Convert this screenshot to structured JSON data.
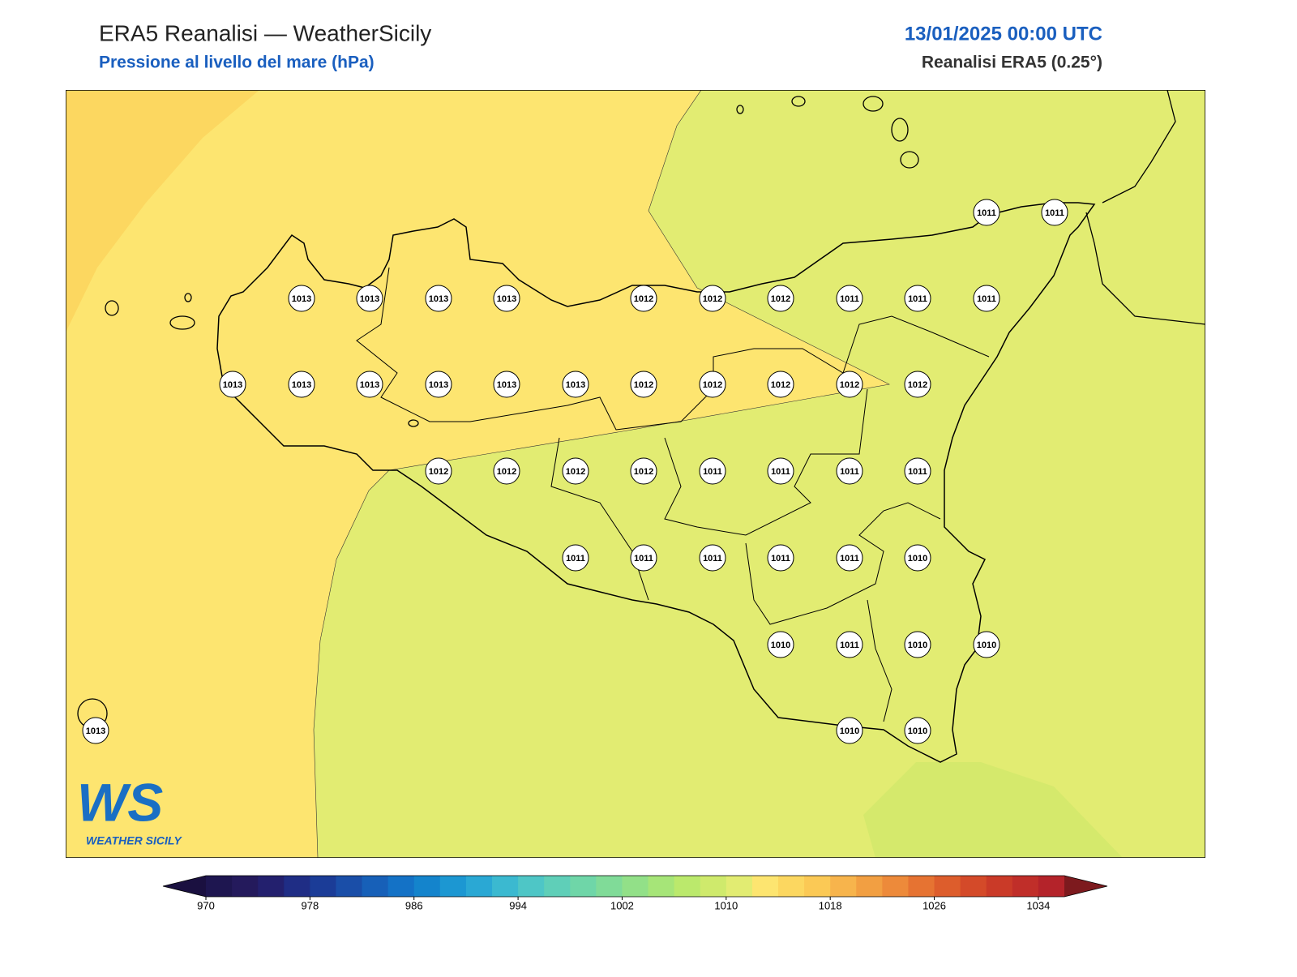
{
  "header": {
    "title": "ERA5 Reanalisi — WeatherSicily",
    "subtitle": "Pressione al livello del mare (hPa)",
    "datetime": "13/01/2025 00:00 UTC",
    "source": "Reanalisi ERA5 (0.25°)"
  },
  "map": {
    "stations": [
      1011,
      1011,
      1013,
      1013,
      1013,
      1013,
      1012,
      1012,
      1012,
      1011,
      1011,
      1011,
      1013,
      1013,
      1013,
      1013,
      1013,
      1013,
      1012,
      1012,
      1012,
      1012,
      1012,
      1012,
      1012,
      1012,
      1012,
      1011,
      1011,
      1011,
      1011,
      1011,
      1011,
      1011,
      1011,
      1011,
      1010,
      1010,
      1011,
      1010,
      1010,
      1013,
      1010,
      1010
    ]
  },
  "colorbar": {
    "lim": [
      970,
      1036
    ],
    "step": 2,
    "ticks": [
      970,
      978,
      986,
      994,
      1002,
      1010,
      1018,
      1026,
      1034
    ],
    "colors": [
      "#1e1650",
      "#241a5c",
      "#23206e",
      "#1f2d85",
      "#1b3c97",
      "#1a4ea8",
      "#1760b8",
      "#1472c6",
      "#1484cc",
      "#1c97d2",
      "#2aa8d4",
      "#3bb9d0",
      "#4ec6c6",
      "#5fcfb8",
      "#6fd6a8",
      "#80db98",
      "#92e088",
      "#a6e578",
      "#bbe96c",
      "#cfea6c",
      "#e2ec72",
      "#fde570",
      "#fcd760",
      "#fbc955",
      "#f7b44c",
      "#f29f42",
      "#ed8a3a",
      "#e67332",
      "#dd5d2c",
      "#d44a29",
      "#ca3a28",
      "#c02e29",
      "#b4232a"
    ],
    "under_color": "#1a1040",
    "over_color": "#7d1a1e"
  },
  "logo": {
    "letters": "WS",
    "name": "WEATHER SICILY"
  }
}
